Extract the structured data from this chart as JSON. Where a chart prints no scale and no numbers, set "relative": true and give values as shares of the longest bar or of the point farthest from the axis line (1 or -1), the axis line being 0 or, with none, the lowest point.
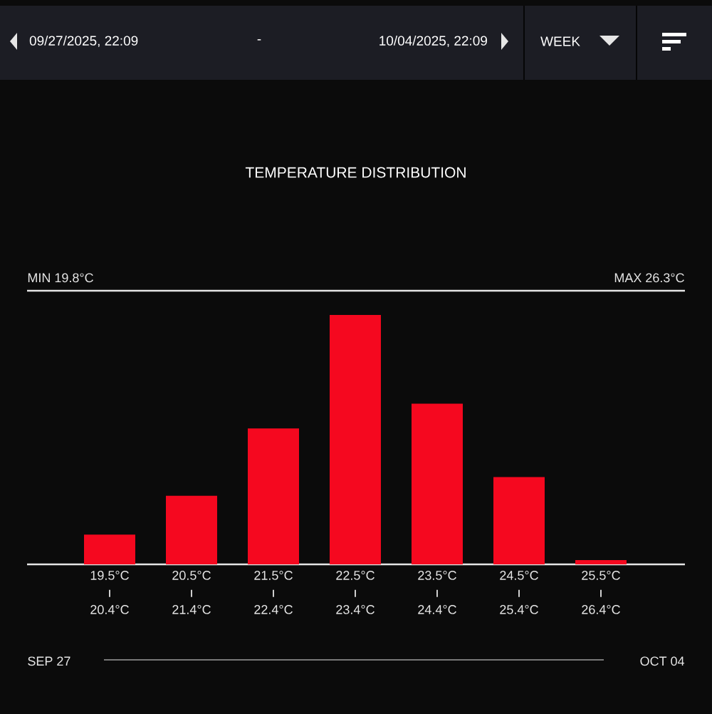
{
  "chart_data": {
    "type": "bar",
    "title": "TEMPERATURE DISTRIBUTION",
    "categories": [
      "19.5°C",
      "20.5°C",
      "21.5°C",
      "22.5°C",
      "23.5°C",
      "24.5°C",
      "25.5°C"
    ],
    "values": [
      0.119,
      0.275,
      0.545,
      1,
      0.644,
      0.35,
      0.017
    ],
    "color": "#f5081f",
    "relative": true,
    "annotations": [
      "09/27/2025, 22:09",
      "-",
      "10/04/2025, 22:09",
      "WEEK",
      "MIN 19.8°C",
      "MAX 26.3°C",
      "SEP 27",
      "OCT 04",
      "20.4°C",
      "21.4°C",
      "22.4°C",
      "23.4°C",
      "24.4°C",
      "25.4°C",
      "26.4°C"
    ]
  }
}
